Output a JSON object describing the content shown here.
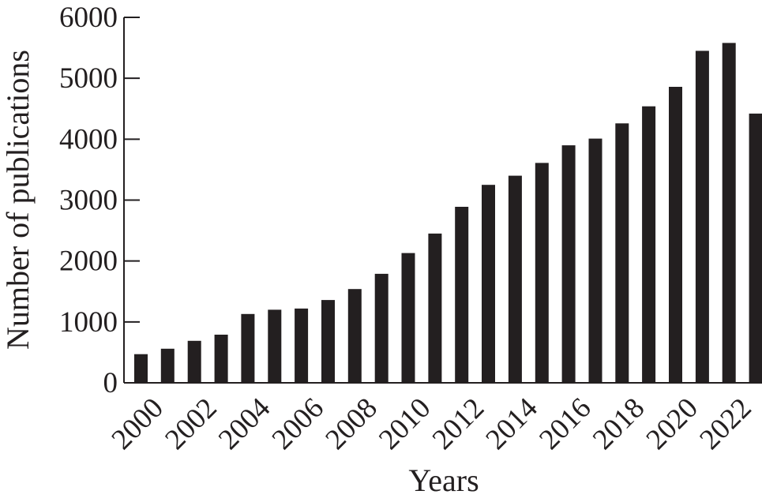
{
  "chart_data": {
    "type": "bar",
    "title": "",
    "xlabel": "Years",
    "ylabel": "Number of publications",
    "categories": [
      "2000",
      "2001",
      "2002",
      "2003",
      "2004",
      "2005",
      "2006",
      "2007",
      "2008",
      "2009",
      "2010",
      "2011",
      "2012",
      "2013",
      "2014",
      "2015",
      "2016",
      "2017",
      "2018",
      "2019",
      "2020",
      "2021",
      "2022",
      "2023"
    ],
    "values": [
      470,
      560,
      690,
      790,
      1130,
      1200,
      1220,
      1360,
      1540,
      1790,
      2130,
      2450,
      2890,
      3250,
      3400,
      3610,
      3900,
      4010,
      4260,
      4540,
      4860,
      5450,
      5580,
      4420
    ],
    "x_tick_labels": [
      "2000",
      "2002",
      "2004",
      "2006",
      "2008",
      "2010",
      "2012",
      "2014",
      "2016",
      "2018",
      "2020",
      "2022"
    ],
    "y_tick_labels": [
      "0",
      "1000",
      "2000",
      "3000",
      "4000",
      "5000",
      "6000"
    ],
    "ylim": [
      0,
      6000
    ],
    "grid": false,
    "legend": "none",
    "colors": {
      "bar": "#231f20",
      "axis": "#231f20",
      "text": "#231f20"
    }
  }
}
